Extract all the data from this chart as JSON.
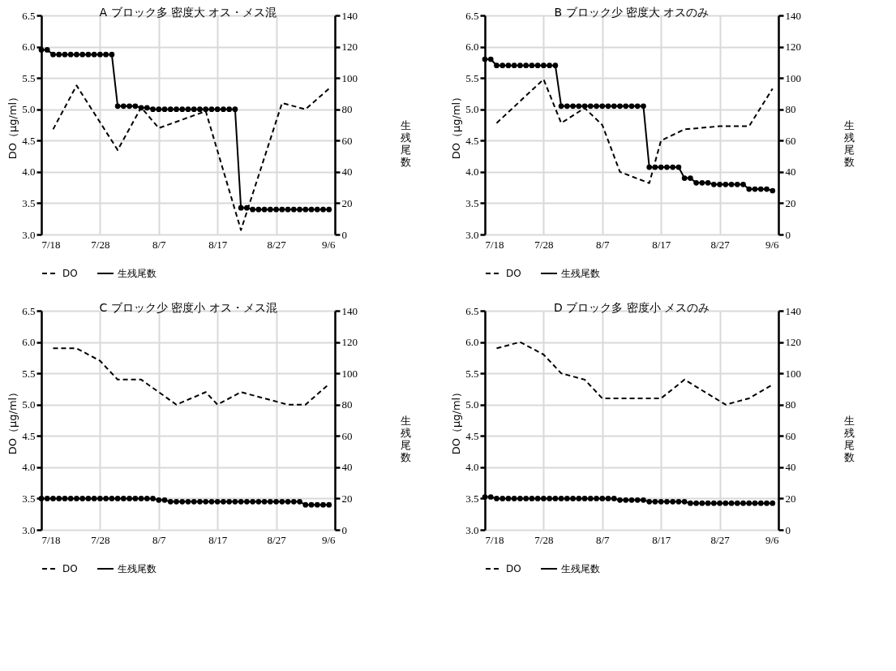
{
  "chart_data": [
    {
      "type": "line",
      "title": "A ブロック多 密度大 オス・メス混",
      "ylabel": "DO（μg/ml）",
      "y2label": "生残尾数",
      "grid": true,
      "legend": "bottom",
      "x": [
        "--07-18",
        "--07-19",
        "--07-20",
        "--07-21",
        "--07-22",
        "--07-23",
        "--07-24",
        "--07-25",
        "--07-26",
        "--07-27",
        "--07-28",
        "--07-29",
        "--07-30",
        "--07-31",
        "--08-01",
        "--08-02",
        "--08-03",
        "--08-04",
        "--08-05",
        "--08-06",
        "--08-07",
        "--08-08",
        "--08-09",
        "--08-10",
        "--08-11",
        "--08-12",
        "--08-13",
        "--08-14",
        "--08-15",
        "--08-16",
        "--08-17",
        "--08-18",
        "--08-19",
        "--08-20",
        "--08-21",
        "--08-22",
        "--08-23",
        "--08-24",
        "--08-25",
        "--08-26",
        "--08-27",
        "--08-28",
        "--08-29",
        "--08-30",
        "--08-31",
        "--09-01",
        "--09-02",
        "--09-03",
        "--09-04",
        "--09-05"
      ],
      "xlim": [
        "--07-18",
        "--09-06"
      ],
      "xticks": [
        {
          "value": "--07-18",
          "label": "7/18"
        },
        {
          "value": "--07-28",
          "label": "7/28"
        },
        {
          "value": "--08-07",
          "label": "8/7"
        },
        {
          "value": "--08-17",
          "label": "8/17"
        },
        {
          "value": "--08-27",
          "label": "8/27"
        },
        {
          "value": "--09-06",
          "label": "9/6"
        }
      ],
      "ylim": [
        3,
        6.5
      ],
      "yticks": [
        {
          "value": 3,
          "label": "3.0"
        },
        3.5,
        {
          "value": 4,
          "label": "4.0"
        },
        4.5,
        {
          "value": 5,
          "label": "5.0"
        },
        5.5,
        {
          "value": 6,
          "label": "6.0"
        },
        6.5
      ],
      "y2lim": [
        0,
        140
      ],
      "y2ticks": [
        0,
        20,
        40,
        60,
        80,
        100,
        120,
        140
      ],
      "series": [
        {
          "name": "DO",
          "color": "#000000",
          "line_style": "dashed",
          "marker": "none",
          "x": [
            "--07-20",
            "--07-24",
            "--07-31",
            "--08-04",
            "--08-07",
            "--08-15",
            "--08-21",
            "--08-28",
            "--09-01",
            "--09-05"
          ],
          "values": [
            4.68,
            5.38,
            4.35,
            5.03,
            4.7,
            4.97,
            3.07,
            5.1,
            5.0,
            5.33
          ]
        },
        {
          "name": "生残尾数",
          "color": "#000000",
          "line_style": "solid",
          "marker": "circle",
          "axis": "y2",
          "values": [
            118,
            118,
            115,
            115,
            115,
            115,
            115,
            115,
            115,
            115,
            115,
            115,
            115,
            82,
            82,
            82,
            82,
            81,
            81,
            80,
            80,
            80,
            80,
            80,
            80,
            80,
            80,
            80,
            80,
            80,
            80,
            80,
            80,
            80,
            17,
            17,
            16,
            16,
            16,
            16,
            16,
            16,
            16,
            16,
            16,
            16,
            16,
            16,
            16,
            16
          ]
        }
      ]
    },
    {
      "type": "line",
      "title": "B ブロック少 密度大 オスのみ",
      "ylabel": "DO（μg/ml）",
      "y2label": "生残尾数",
      "grid": true,
      "legend": "bottom",
      "x": [
        "--07-18",
        "--07-19",
        "--07-20",
        "--07-21",
        "--07-22",
        "--07-23",
        "--07-24",
        "--07-25",
        "--07-26",
        "--07-27",
        "--07-28",
        "--07-29",
        "--07-30",
        "--07-31",
        "--08-01",
        "--08-02",
        "--08-03",
        "--08-04",
        "--08-05",
        "--08-06",
        "--08-07",
        "--08-08",
        "--08-09",
        "--08-10",
        "--08-11",
        "--08-12",
        "--08-13",
        "--08-14",
        "--08-15",
        "--08-16",
        "--08-17",
        "--08-18",
        "--08-19",
        "--08-20",
        "--08-21",
        "--08-22",
        "--08-23",
        "--08-24",
        "--08-25",
        "--08-26",
        "--08-27",
        "--08-28",
        "--08-29",
        "--08-30",
        "--08-31",
        "--09-01",
        "--09-02",
        "--09-03",
        "--09-04",
        "--09-05"
      ],
      "xlim": [
        "--07-18",
        "--09-06"
      ],
      "xticks": [
        {
          "value": "--07-18",
          "label": "7/18"
        },
        {
          "value": "--07-28",
          "label": "7/28"
        },
        {
          "value": "--08-07",
          "label": "8/7"
        },
        {
          "value": "--08-17",
          "label": "8/17"
        },
        {
          "value": "--08-27",
          "label": "8/27"
        },
        {
          "value": "--09-06",
          "label": "9/6"
        }
      ],
      "ylim": [
        3,
        6.5
      ],
      "yticks": [
        {
          "value": 3,
          "label": "3.0"
        },
        3.5,
        {
          "value": 4,
          "label": "4.0"
        },
        4.5,
        {
          "value": 5,
          "label": "5.0"
        },
        5.5,
        {
          "value": 6,
          "label": "6.0"
        },
        6.5
      ],
      "y2lim": [
        0,
        140
      ],
      "y2ticks": [
        0,
        20,
        40,
        60,
        80,
        100,
        120,
        140
      ],
      "series": [
        {
          "name": "DO",
          "color": "#000000",
          "line_style": "dashed",
          "marker": "none",
          "x": [
            "--07-20",
            "--07-28",
            "--07-31",
            "--08-04",
            "--08-07",
            "--08-10",
            "--08-15",
            "--08-17",
            "--08-21",
            "--08-27",
            "--09-01",
            "--09-05"
          ],
          "values": [
            4.78,
            5.48,
            4.78,
            5.02,
            4.75,
            4.0,
            3.82,
            4.5,
            4.68,
            4.73,
            4.73,
            5.33
          ]
        },
        {
          "name": "生残尾数",
          "color": "#000000",
          "line_style": "solid",
          "marker": "circle",
          "axis": "y2",
          "values": [
            112,
            112,
            108,
            108,
            108,
            108,
            108,
            108,
            108,
            108,
            108,
            108,
            108,
            82,
            82,
            82,
            82,
            82,
            82,
            82,
            82,
            82,
            82,
            82,
            82,
            82,
            82,
            82,
            43,
            43,
            43,
            43,
            43,
            43,
            36,
            36,
            33,
            33,
            33,
            32,
            32,
            32,
            32,
            32,
            32,
            29,
            29,
            29,
            29,
            28
          ]
        }
      ]
    },
    {
      "type": "line",
      "title": "C ブロック少 密度小 オス・メス混",
      "ylabel": "DO（μg/ml）",
      "y2label": "生残尾数",
      "grid": true,
      "legend": "bottom",
      "x": [
        "--07-18",
        "--07-19",
        "--07-20",
        "--07-21",
        "--07-22",
        "--07-23",
        "--07-24",
        "--07-25",
        "--07-26",
        "--07-27",
        "--07-28",
        "--07-29",
        "--07-30",
        "--07-31",
        "--08-01",
        "--08-02",
        "--08-03",
        "--08-04",
        "--08-05",
        "--08-06",
        "--08-07",
        "--08-08",
        "--08-09",
        "--08-10",
        "--08-11",
        "--08-12",
        "--08-13",
        "--08-14",
        "--08-15",
        "--08-16",
        "--08-17",
        "--08-18",
        "--08-19",
        "--08-20",
        "--08-21",
        "--08-22",
        "--08-23",
        "--08-24",
        "--08-25",
        "--08-26",
        "--08-27",
        "--08-28",
        "--08-29",
        "--08-30",
        "--08-31",
        "--09-01",
        "--09-02",
        "--09-03",
        "--09-04",
        "--09-05"
      ],
      "xlim": [
        "--07-18",
        "--09-06"
      ],
      "xticks": [
        {
          "value": "--07-18",
          "label": "7/18"
        },
        {
          "value": "--07-28",
          "label": "7/28"
        },
        {
          "value": "--08-07",
          "label": "8/7"
        },
        {
          "value": "--08-17",
          "label": "8/17"
        },
        {
          "value": "--08-27",
          "label": "8/27"
        },
        {
          "value": "--09-06",
          "label": "9/6"
        }
      ],
      "ylim": [
        3,
        6.5
      ],
      "yticks": [
        {
          "value": 3,
          "label": "3.0"
        },
        3.5,
        {
          "value": 4,
          "label": "4.0"
        },
        4.5,
        {
          "value": 5,
          "label": "5.0"
        },
        5.5,
        {
          "value": 6,
          "label": "6.0"
        },
        6.5
      ],
      "y2lim": [
        0,
        140
      ],
      "y2ticks": [
        0,
        20,
        40,
        60,
        80,
        100,
        120,
        140
      ],
      "series": [
        {
          "name": "DO",
          "color": "#000000",
          "line_style": "dashed",
          "marker": "none",
          "x": [
            "--07-20",
            "--07-24",
            "--07-28",
            "--07-31",
            "--08-04",
            "--08-10",
            "--08-15",
            "--08-17",
            "--08-21",
            "--08-29",
            "--09-01",
            "--09-05"
          ],
          "values": [
            5.9,
            5.9,
            5.7,
            5.4,
            5.4,
            5.0,
            5.2,
            5.0,
            5.2,
            5.0,
            5.0,
            5.33
          ]
        },
        {
          "name": "生残尾数",
          "color": "#000000",
          "line_style": "solid",
          "marker": "circle",
          "axis": "y2",
          "values": [
            20,
            20,
            20,
            20,
            20,
            20,
            20,
            20,
            20,
            20,
            20,
            20,
            20,
            20,
            20,
            20,
            20,
            20,
            20,
            20,
            19,
            19,
            18,
            18,
            18,
            18,
            18,
            18,
            18,
            18,
            18,
            18,
            18,
            18,
            18,
            18,
            18,
            18,
            18,
            18,
            18,
            18,
            18,
            18,
            18,
            16,
            16,
            16,
            16,
            16
          ]
        }
      ]
    },
    {
      "type": "line",
      "title": "D ブロック多 密度小 メスのみ",
      "ylabel": "DO（μg/ml）",
      "y2label": "生残尾数",
      "grid": true,
      "legend": "bottom",
      "x": [
        "--07-18",
        "--07-19",
        "--07-20",
        "--07-21",
        "--07-22",
        "--07-23",
        "--07-24",
        "--07-25",
        "--07-26",
        "--07-27",
        "--07-28",
        "--07-29",
        "--07-30",
        "--07-31",
        "--08-01",
        "--08-02",
        "--08-03",
        "--08-04",
        "--08-05",
        "--08-06",
        "--08-07",
        "--08-08",
        "--08-09",
        "--08-10",
        "--08-11",
        "--08-12",
        "--08-13",
        "--08-14",
        "--08-15",
        "--08-16",
        "--08-17",
        "--08-18",
        "--08-19",
        "--08-20",
        "--08-21",
        "--08-22",
        "--08-23",
        "--08-24",
        "--08-25",
        "--08-26",
        "--08-27",
        "--08-28",
        "--08-29",
        "--08-30",
        "--08-31",
        "--09-01",
        "--09-02",
        "--09-03",
        "--09-04",
        "--09-05"
      ],
      "xlim": [
        "--07-18",
        "--09-06"
      ],
      "xticks": [
        {
          "value": "--07-18",
          "label": "7/18"
        },
        {
          "value": "--07-28",
          "label": "7/28"
        },
        {
          "value": "--08-07",
          "label": "8/7"
        },
        {
          "value": "--08-17",
          "label": "8/17"
        },
        {
          "value": "--08-27",
          "label": "8/27"
        },
        {
          "value": "--09-06",
          "label": "9/6"
        }
      ],
      "ylim": [
        3,
        6.5
      ],
      "yticks": [
        {
          "value": 3,
          "label": "3.0"
        },
        3.5,
        {
          "value": 4,
          "label": "4.0"
        },
        4.5,
        {
          "value": 5,
          "label": "5.0"
        },
        5.5,
        {
          "value": 6,
          "label": "6.0"
        },
        6.5
      ],
      "y2lim": [
        0,
        140
      ],
      "y2ticks": [
        0,
        20,
        40,
        60,
        80,
        100,
        120,
        140
      ],
      "series": [
        {
          "name": "DO",
          "color": "#000000",
          "line_style": "dashed",
          "marker": "none",
          "x": [
            "--07-20",
            "--07-24",
            "--07-28",
            "--07-31",
            "--08-04",
            "--08-07",
            "--08-17",
            "--08-21",
            "--08-28",
            "--09-01",
            "--09-05"
          ],
          "values": [
            5.9,
            6.0,
            5.8,
            5.5,
            5.4,
            5.1,
            5.1,
            5.4,
            5.0,
            5.1,
            5.32
          ]
        },
        {
          "name": "生残尾数",
          "color": "#000000",
          "line_style": "solid",
          "marker": "circle",
          "axis": "y2",
          "values": [
            21,
            21,
            20,
            20,
            20,
            20,
            20,
            20,
            20,
            20,
            20,
            20,
            20,
            20,
            20,
            20,
            20,
            20,
            20,
            20,
            20,
            20,
            20,
            19,
            19,
            19,
            19,
            19,
            18,
            18,
            18,
            18,
            18,
            18,
            18,
            17,
            17,
            17,
            17,
            17,
            17,
            17,
            17,
            17,
            17,
            17,
            17,
            17,
            17,
            17
          ]
        }
      ]
    }
  ]
}
